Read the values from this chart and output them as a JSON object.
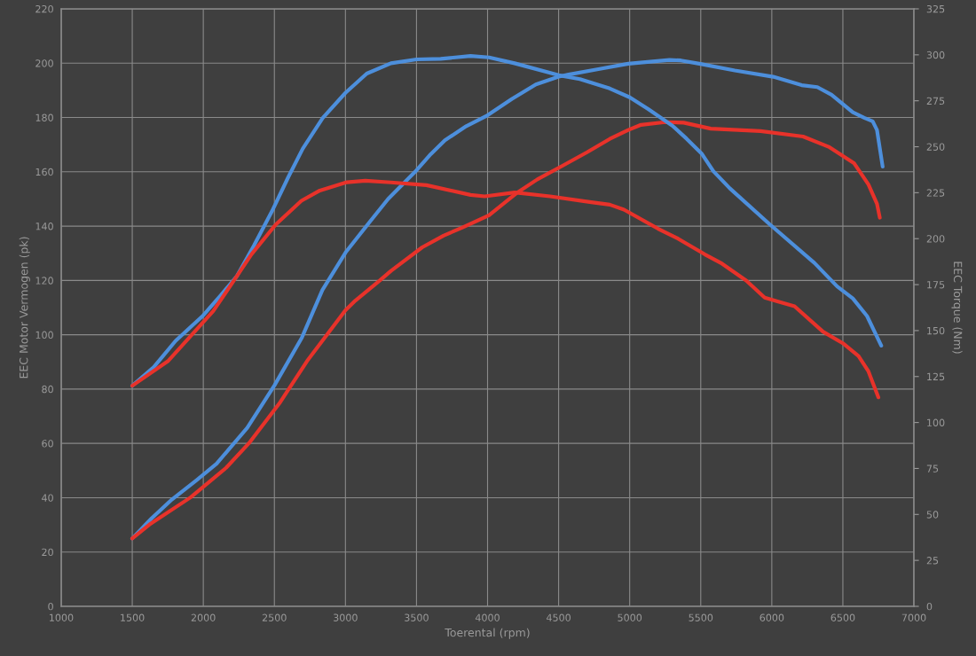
{
  "chart_data": {
    "type": "line",
    "xlabel": "Toerental (rpm)",
    "ylabel": "EEC Motor Vermogen (pk)",
    "y2label": "EEC Torque (Nm)",
    "xlim": [
      1000,
      7000
    ],
    "xticks": [
      1000,
      1500,
      2000,
      2500,
      3000,
      3500,
      4000,
      4500,
      5000,
      5500,
      6000,
      6500,
      7000
    ],
    "ylim": [
      0,
      220
    ],
    "yticks": [
      0,
      20,
      40,
      60,
      80,
      100,
      120,
      140,
      160,
      180,
      200,
      220
    ],
    "y2lim": [
      0,
      325
    ],
    "y2ticks": [
      0,
      25,
      50,
      75,
      100,
      125,
      150,
      175,
      200,
      225,
      250,
      275,
      300,
      325
    ],
    "grid": true,
    "line_style": "solid",
    "series": [
      {
        "color": "#4d8fdc",
        "x": [
          1500,
          1636,
          1780,
          1953,
          2093,
          2309,
          2501,
          2694,
          2838,
          3001,
          3170,
          3300,
          3490,
          3600,
          3700,
          3850,
          4000,
          4170,
          4340,
          4500,
          4570,
          4780,
          4990,
          5280,
          5360,
          5490,
          5740,
          6010,
          6210,
          6320,
          6420,
          6570,
          6650,
          6710,
          6740,
          6780
        ],
        "values": [
          25,
          32.4,
          39.4,
          46.5,
          52.5,
          65.7,
          81.4,
          99,
          116.5,
          130.3,
          141.5,
          150,
          160,
          166.5,
          171.6,
          176.8,
          180.8,
          186.8,
          192.2,
          195,
          195.8,
          197.8,
          199.8,
          201.2,
          201,
          199.8,
          197.3,
          195,
          191.9,
          191.2,
          188.4,
          181.9,
          179.9,
          178.6,
          175.4,
          161.9
        ]
      },
      {
        "color": "#e8322a",
        "x": [
          1500,
          1620,
          1910,
          2160,
          2320,
          2540,
          2730,
          3000,
          3070,
          3240,
          3320,
          3540,
          3690,
          3820,
          4010,
          4200,
          4350,
          4530,
          4700,
          4860,
          4990,
          5080,
          5250,
          5380,
          5570,
          5920,
          6220,
          6400,
          6580,
          6680,
          6740,
          6760
        ],
        "values": [
          25,
          30.1,
          40.1,
          51,
          60,
          75.1,
          90.3,
          109,
          112.6,
          119.9,
          123.5,
          132.2,
          136.5,
          139.4,
          144,
          152,
          157.2,
          162.3,
          167.2,
          172.1,
          175.4,
          177.3,
          178.3,
          178.1,
          175.9,
          175,
          173,
          169.2,
          163.1,
          155.3,
          148.2,
          143.1
        ]
      },
      {
        "color": "#4d8fdc",
        "axis": "y2",
        "x": [
          1500,
          1650,
          1805,
          2000,
          2120,
          2237,
          2357,
          2483,
          2598,
          2700,
          2840,
          3000,
          3150,
          3320,
          3500,
          3670,
          3880,
          4010,
          4190,
          4500,
          4650,
          4860,
          5000,
          5130,
          5300,
          5400,
          5506,
          5589,
          5704,
          5985,
          6300,
          6460,
          6570,
          6670,
          6770
        ],
        "values": [
          120,
          130,
          144.4,
          158.3,
          168.9,
          179.7,
          196.4,
          214.9,
          233.5,
          249,
          265.6,
          279.3,
          289.8,
          295.4,
          297.5,
          297.8,
          299.4,
          298.6,
          295.4,
          288.9,
          286.8,
          281.7,
          276.9,
          270.5,
          261.5,
          254.4,
          246.3,
          236.7,
          227.4,
          207.8,
          186.8,
          174,
          167.5,
          157.9,
          141.8
        ]
      },
      {
        "color": "#e8322a",
        "axis": "y2",
        "x": [
          1500,
          1750,
          2070,
          2340,
          2510,
          2690,
          2820,
          3010,
          3140,
          3320,
          3570,
          3880,
          3980,
          4190,
          4440,
          4730,
          4860,
          4960,
          5200,
          5340,
          5530,
          5650,
          5820,
          5950,
          6040,
          6160,
          6360,
          6500,
          6610,
          6680,
          6750
        ],
        "values": [
          120,
          133.3,
          160.6,
          191.6,
          207.7,
          220.6,
          226.2,
          230.7,
          231.5,
          230.6,
          229.1,
          223.8,
          223,
          225.1,
          223,
          219.8,
          218.5,
          215.8,
          205.4,
          200,
          191.4,
          186.4,
          177.2,
          167.9,
          165.9,
          163.2,
          149.4,
          143.1,
          136.2,
          127.8,
          113.7
        ]
      }
    ]
  }
}
